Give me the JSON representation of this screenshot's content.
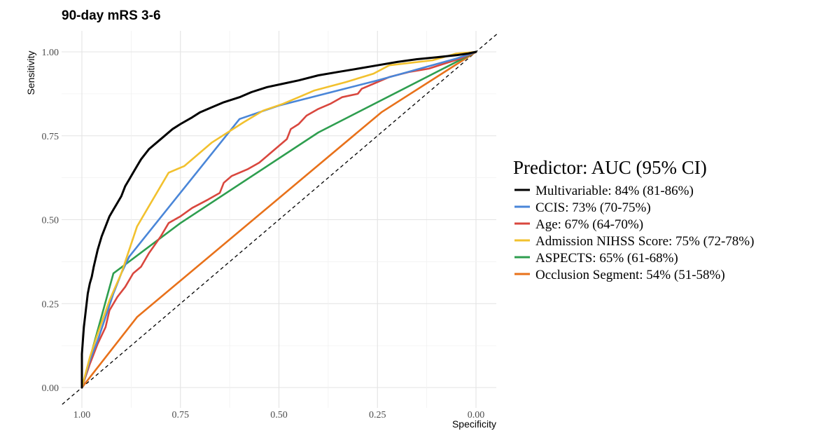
{
  "chart_data": {
    "type": "line",
    "title": "90-day mRS 3-6",
    "xlabel": "Specificity",
    "ylabel": "Sensitivity",
    "xlim": [
      1.0,
      0.0
    ],
    "ylim": [
      0.0,
      1.0
    ],
    "x_reversed": true,
    "x_ticks": [
      1.0,
      0.75,
      0.5,
      0.25,
      0.0
    ],
    "x_tick_labels": [
      "1.00",
      "0.75",
      "0.50",
      "0.25",
      "0.00"
    ],
    "y_ticks": [
      0.0,
      0.25,
      0.5,
      0.75,
      1.0
    ],
    "y_tick_labels": [
      "0.00",
      "0.25",
      "0.50",
      "0.75",
      "1.00"
    ],
    "grid": true,
    "reference_line": "diagonal dashed",
    "legend": {
      "title": "Predictor: AUC (95% CI)",
      "position": "right"
    },
    "series": [
      {
        "name": "Multivariable: 84% (81-86%)",
        "color": "#000000",
        "points": [
          [
            1.0,
            0.0
          ],
          [
            1.0,
            0.1
          ],
          [
            0.995,
            0.18
          ],
          [
            0.99,
            0.23
          ],
          [
            0.985,
            0.28
          ],
          [
            0.98,
            0.31
          ],
          [
            0.975,
            0.33
          ],
          [
            0.97,
            0.36
          ],
          [
            0.96,
            0.41
          ],
          [
            0.95,
            0.45
          ],
          [
            0.94,
            0.48
          ],
          [
            0.93,
            0.51
          ],
          [
            0.92,
            0.53
          ],
          [
            0.91,
            0.55
          ],
          [
            0.9,
            0.57
          ],
          [
            0.89,
            0.6
          ],
          [
            0.88,
            0.62
          ],
          [
            0.87,
            0.64
          ],
          [
            0.86,
            0.66
          ],
          [
            0.85,
            0.68
          ],
          [
            0.83,
            0.71
          ],
          [
            0.81,
            0.73
          ],
          [
            0.79,
            0.75
          ],
          [
            0.77,
            0.77
          ],
          [
            0.75,
            0.785
          ],
          [
            0.72,
            0.805
          ],
          [
            0.7,
            0.82
          ],
          [
            0.67,
            0.835
          ],
          [
            0.64,
            0.85
          ],
          [
            0.6,
            0.865
          ],
          [
            0.57,
            0.88
          ],
          [
            0.53,
            0.895
          ],
          [
            0.49,
            0.905
          ],
          [
            0.45,
            0.915
          ],
          [
            0.4,
            0.93
          ],
          [
            0.35,
            0.94
          ],
          [
            0.3,
            0.95
          ],
          [
            0.25,
            0.96
          ],
          [
            0.2,
            0.97
          ],
          [
            0.15,
            0.978
          ],
          [
            0.1,
            0.984
          ],
          [
            0.05,
            0.99
          ],
          [
            0.02,
            0.995
          ],
          [
            0.0,
            1.0
          ]
        ]
      },
      {
        "name": "CCIS: 73% (70-75%)",
        "color": "#4a86d8",
        "points": [
          [
            1.0,
            0.0
          ],
          [
            0.98,
            0.08
          ],
          [
            0.96,
            0.14
          ],
          [
            0.94,
            0.21
          ],
          [
            0.92,
            0.28
          ],
          [
            0.9,
            0.34
          ],
          [
            0.88,
            0.39
          ],
          [
            0.6,
            0.8
          ],
          [
            0.5,
            0.84
          ],
          [
            0.25,
            0.915
          ],
          [
            0.05,
            0.98
          ],
          [
            0.0,
            1.0
          ]
        ]
      },
      {
        "name": "Age: 67% (64-70%)",
        "color": "#d9473e",
        "points": [
          [
            1.0,
            0.0
          ],
          [
            0.98,
            0.07
          ],
          [
            0.96,
            0.13
          ],
          [
            0.94,
            0.18
          ],
          [
            0.93,
            0.23
          ],
          [
            0.91,
            0.27
          ],
          [
            0.89,
            0.3
          ],
          [
            0.87,
            0.34
          ],
          [
            0.85,
            0.36
          ],
          [
            0.83,
            0.4
          ],
          [
            0.8,
            0.45
          ],
          [
            0.78,
            0.49
          ],
          [
            0.75,
            0.51
          ],
          [
            0.72,
            0.535
          ],
          [
            0.68,
            0.56
          ],
          [
            0.65,
            0.58
          ],
          [
            0.64,
            0.61
          ],
          [
            0.62,
            0.63
          ],
          [
            0.58,
            0.65
          ],
          [
            0.55,
            0.67
          ],
          [
            0.51,
            0.71
          ],
          [
            0.48,
            0.74
          ],
          [
            0.47,
            0.77
          ],
          [
            0.45,
            0.785
          ],
          [
            0.43,
            0.81
          ],
          [
            0.4,
            0.83
          ],
          [
            0.37,
            0.845
          ],
          [
            0.34,
            0.865
          ],
          [
            0.3,
            0.875
          ],
          [
            0.29,
            0.89
          ],
          [
            0.26,
            0.905
          ],
          [
            0.22,
            0.925
          ],
          [
            0.17,
            0.94
          ],
          [
            0.12,
            0.95
          ],
          [
            0.08,
            0.965
          ],
          [
            0.04,
            0.98
          ],
          [
            0.0,
            1.0
          ]
        ]
      },
      {
        "name": "Admission NIHSS Score: 75% (72-78%)",
        "color": "#f2c12e",
        "points": [
          [
            1.0,
            0.0
          ],
          [
            0.98,
            0.09
          ],
          [
            0.96,
            0.16
          ],
          [
            0.93,
            0.26
          ],
          [
            0.9,
            0.34
          ],
          [
            0.86,
            0.48
          ],
          [
            0.83,
            0.54
          ],
          [
            0.78,
            0.64
          ],
          [
            0.74,
            0.66
          ],
          [
            0.67,
            0.73
          ],
          [
            0.59,
            0.79
          ],
          [
            0.54,
            0.825
          ],
          [
            0.49,
            0.845
          ],
          [
            0.45,
            0.865
          ],
          [
            0.41,
            0.885
          ],
          [
            0.33,
            0.91
          ],
          [
            0.26,
            0.935
          ],
          [
            0.22,
            0.96
          ],
          [
            0.11,
            0.975
          ],
          [
            0.05,
            0.995
          ],
          [
            0.0,
            1.0
          ]
        ]
      },
      {
        "name": "ASPECTS: 65% (61-68%)",
        "color": "#2e9e4f",
        "points": [
          [
            1.0,
            0.0
          ],
          [
            0.92,
            0.34
          ],
          [
            0.75,
            0.49
          ],
          [
            0.4,
            0.76
          ],
          [
            0.0,
            1.0
          ]
        ]
      },
      {
        "name": "Occlusion Segment: 54% (51-58%)",
        "color": "#e8711a",
        "points": [
          [
            1.0,
            0.0
          ],
          [
            0.86,
            0.21
          ],
          [
            0.24,
            0.82
          ],
          [
            0.0,
            1.0
          ]
        ]
      }
    ]
  }
}
